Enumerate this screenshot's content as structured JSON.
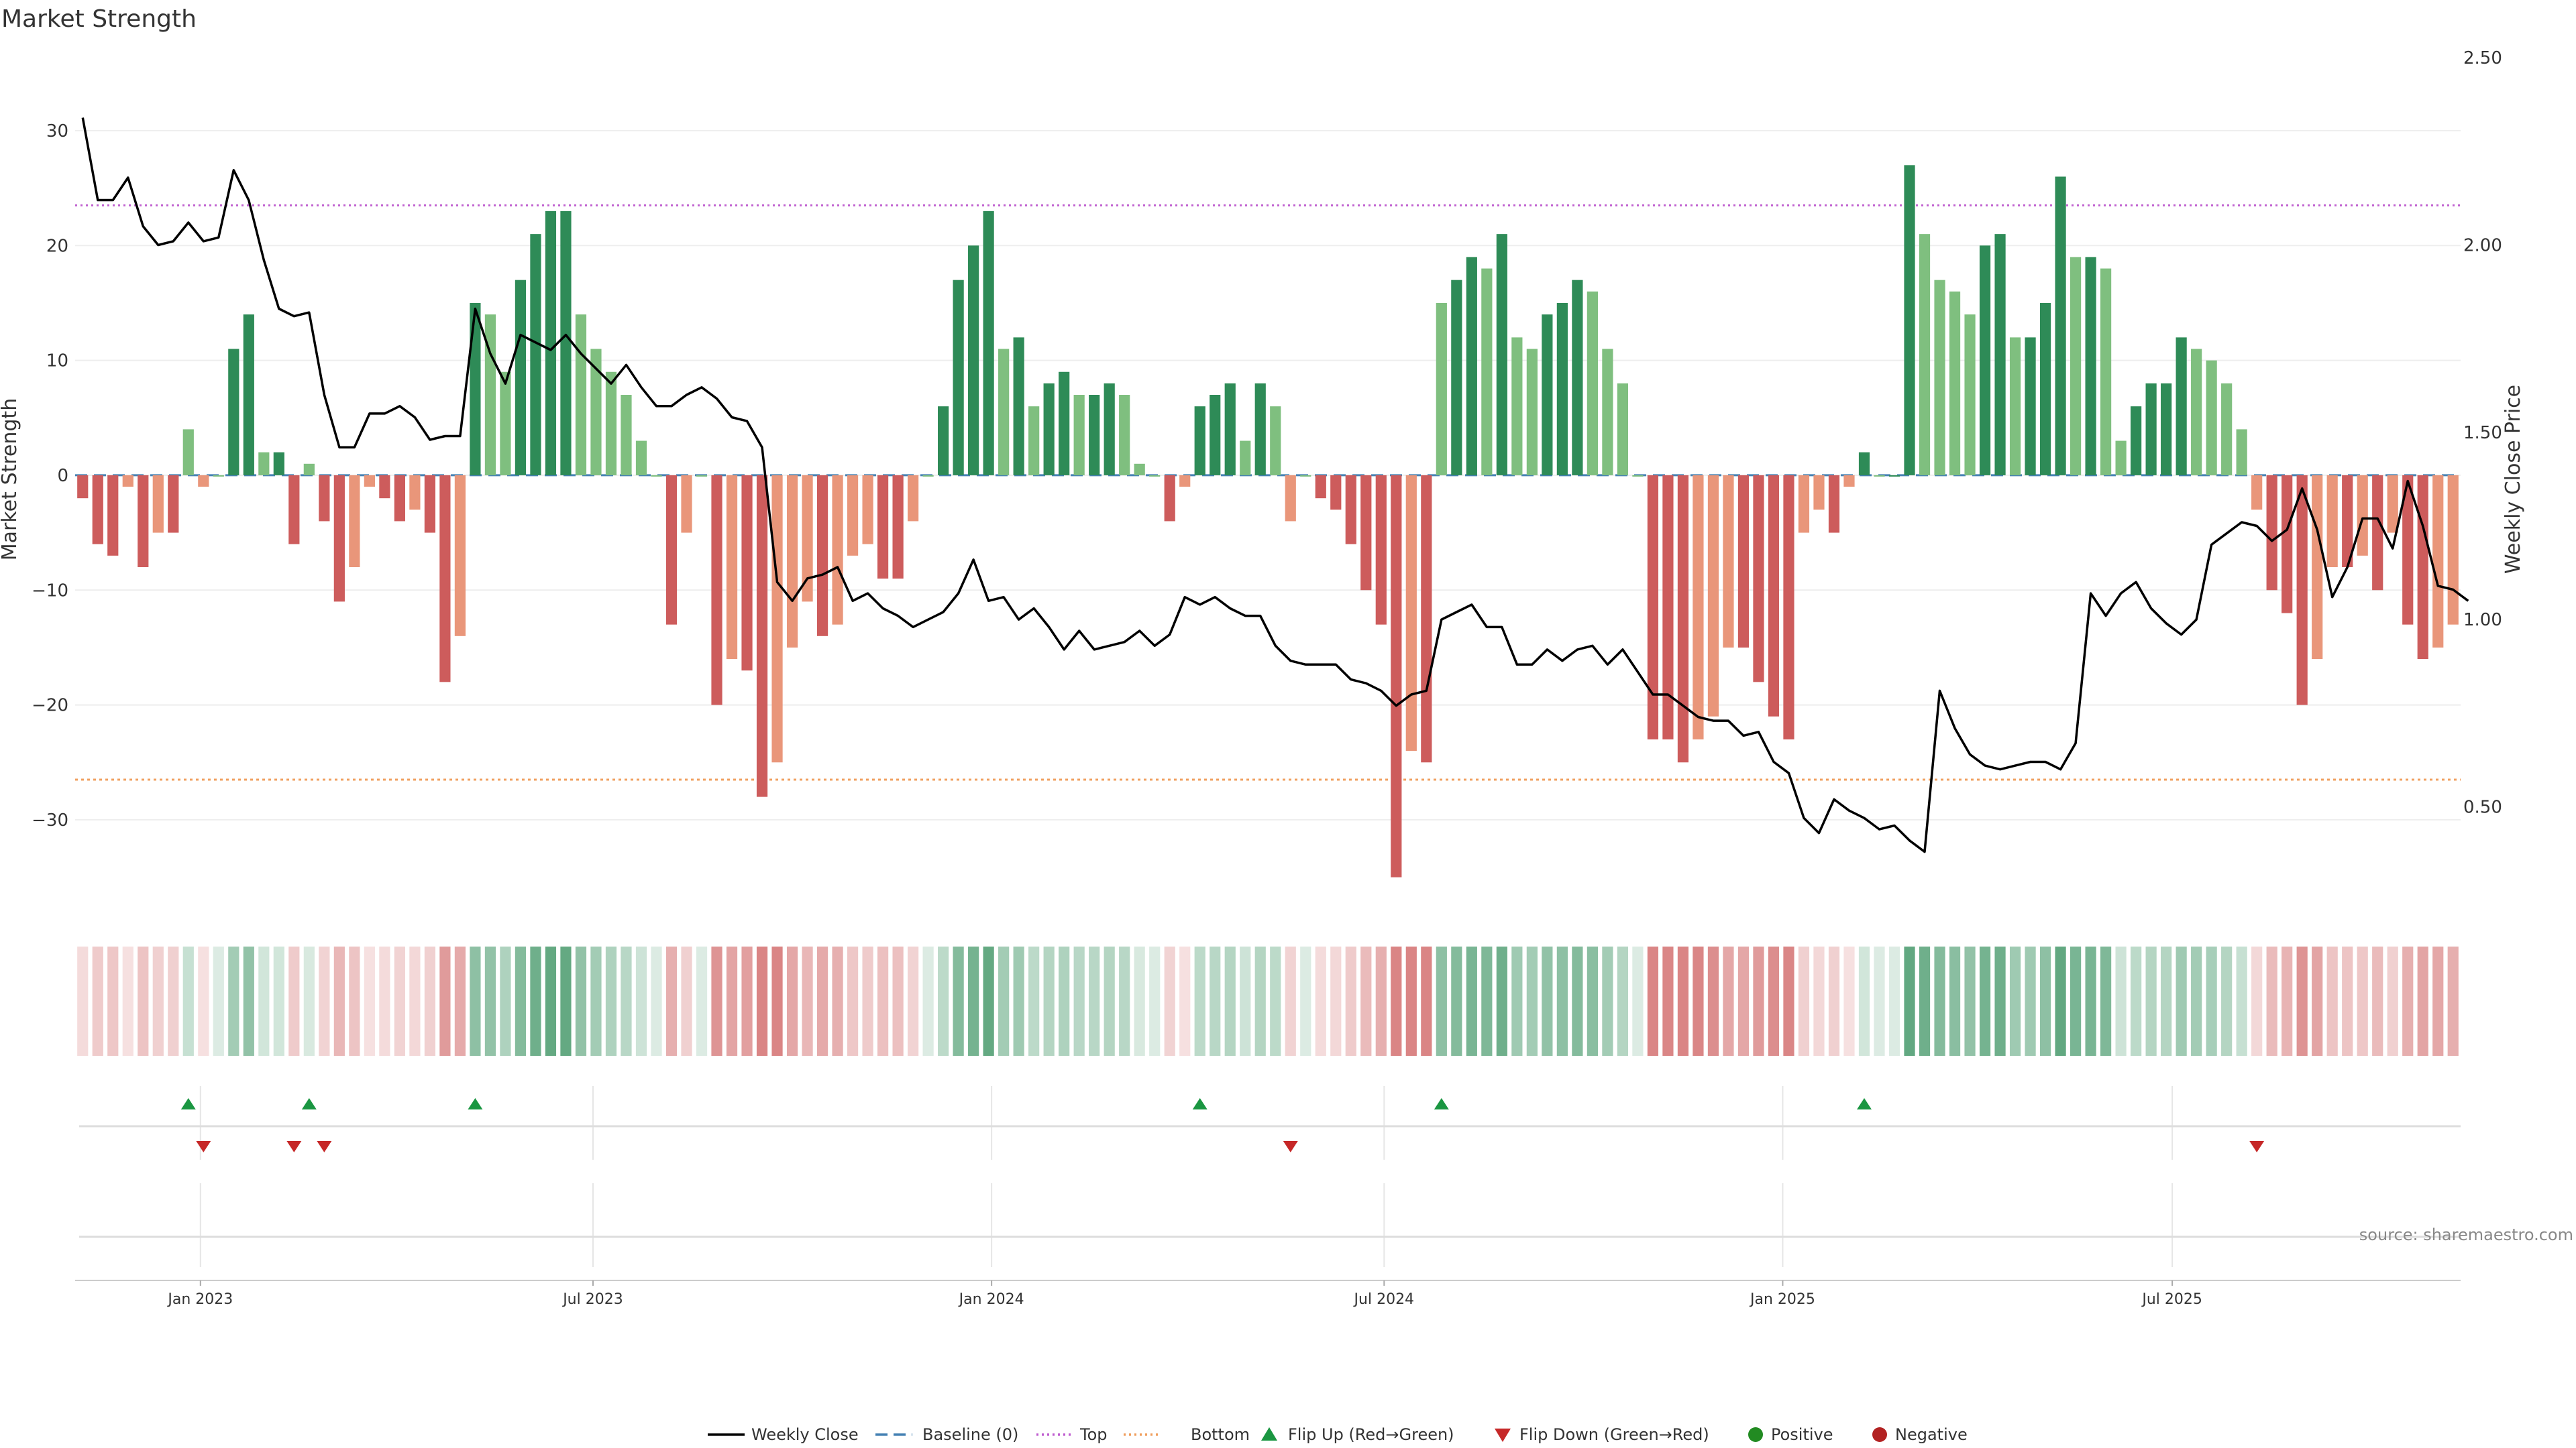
{
  "chart_data": {
    "type": "bar",
    "title": "Market Strength",
    "ylabel_left": "Market Strength",
    "ylabel_right": "Weekly Close Price",
    "ylim_left": [
      -38,
      37
    ],
    "ylim_right": [
      0.22,
      2.52
    ],
    "yticks_left": [
      30,
      20,
      10,
      0,
      -10,
      -20,
      -30
    ],
    "yticks_left_labels": [
      "30",
      "20",
      "10",
      "0",
      "−10",
      "−20",
      "−30"
    ],
    "yticks_right": [
      2.5,
      2.0,
      1.5,
      1.0,
      0.5
    ],
    "yticks_right_labels": [
      "2.50",
      "2.00",
      "1.50",
      "1.00",
      "0.50"
    ],
    "top_line": 23.5,
    "bottom_line": -26.5,
    "xticks": [
      {
        "label": "Jan 2023",
        "index": 8.3
      },
      {
        "label": "Jul 2023",
        "index": 34.3
      },
      {
        "label": "Jan 2024",
        "index": 60.7
      },
      {
        "label": "Jul 2024",
        "index": 86.7
      },
      {
        "label": "Jan 2025",
        "index": 113.1
      },
      {
        "label": "Jul 2025",
        "index": 138.9
      }
    ],
    "strength": [
      -2,
      -6,
      -7,
      -1,
      -8,
      -5,
      -5,
      4,
      -1,
      0,
      11,
      14,
      2,
      2,
      -6,
      1,
      -4,
      -11,
      -8,
      -1,
      -2,
      -4,
      -3,
      -5,
      -18,
      -14,
      15,
      14,
      9,
      17,
      21,
      23,
      23,
      14,
      11,
      9,
      7,
      3,
      0,
      -13,
      -5,
      0,
      -20,
      -16,
      -17,
      -28,
      -25,
      -15,
      -11,
      -14,
      -13,
      -7,
      -6,
      -9,
      -9,
      -4,
      0,
      6,
      17,
      20,
      23,
      11,
      12,
      6,
      8,
      9,
      7,
      7,
      8,
      7,
      1,
      0,
      -4,
      -1,
      6,
      7,
      8,
      3,
      8,
      6,
      -4,
      0,
      -2,
      -3,
      -6,
      -10,
      -13,
      -35,
      -24,
      -25,
      15,
      17,
      19,
      18,
      21,
      12,
      11,
      14,
      15,
      17,
      16,
      11,
      8,
      0,
      -23,
      -23,
      -25,
      -23,
      -21,
      -15,
      -15,
      -18,
      -21,
      -23,
      -5,
      -3,
      -5,
      -1,
      2,
      0,
      0,
      27,
      21,
      17,
      16,
      14,
      20,
      21,
      12,
      12,
      15,
      26,
      19,
      19,
      18,
      3,
      6,
      8,
      8,
      12,
      11,
      10,
      8,
      4,
      -3,
      -10,
      -12,
      -20,
      -16,
      -8,
      -8,
      -7,
      -10,
      -5,
      -13,
      -16,
      -15,
      -13
    ],
    "weekly_close": [
      2.34,
      2.12,
      2.12,
      2.18,
      2.05,
      2.0,
      2.01,
      2.06,
      2.01,
      2.02,
      2.2,
      2.12,
      1.96,
      1.83,
      1.81,
      1.82,
      1.6,
      1.46,
      1.46,
      1.55,
      1.55,
      1.57,
      1.54,
      1.48,
      1.49,
      1.49,
      1.83,
      1.71,
      1.63,
      1.76,
      1.74,
      1.72,
      1.76,
      1.71,
      1.67,
      1.63,
      1.68,
      1.62,
      1.57,
      1.57,
      1.6,
      1.62,
      1.59,
      1.54,
      1.53,
      1.46,
      1.1,
      1.05,
      1.11,
      1.12,
      1.14,
      1.05,
      1.07,
      1.03,
      1.01,
      0.98,
      1.0,
      1.02,
      1.07,
      1.16,
      1.05,
      1.06,
      1.0,
      1.03,
      0.98,
      0.92,
      0.97,
      0.92,
      0.93,
      0.94,
      0.97,
      0.93,
      0.96,
      1.06,
      1.04,
      1.06,
      1.03,
      1.01,
      1.01,
      0.93,
      0.89,
      0.88,
      0.88,
      0.88,
      0.84,
      0.83,
      0.81,
      0.77,
      0.8,
      0.81,
      1.0,
      1.02,
      1.04,
      0.98,
      0.98,
      0.88,
      0.88,
      0.92,
      0.89,
      0.92,
      0.93,
      0.88,
      0.92,
      0.86,
      0.8,
      0.8,
      0.77,
      0.74,
      0.73,
      0.73,
      0.69,
      0.7,
      0.62,
      0.59,
      0.47,
      0.43,
      0.52,
      0.49,
      0.47,
      0.44,
      0.45,
      0.41,
      0.38,
      0.81,
      0.71,
      0.64,
      0.61,
      0.6,
      0.61,
      0.62,
      0.62,
      0.6,
      0.67,
      1.07,
      1.01,
      1.07,
      1.1,
      1.03,
      0.99,
      0.96,
      1.0,
      1.2,
      1.23,
      1.26,
      1.25,
      1.21,
      1.24,
      1.35,
      1.24,
      1.06,
      1.14,
      1.27,
      1.27,
      1.19,
      1.37,
      1.25,
      1.09,
      1.08,
      1.05
    ],
    "legend": [
      {
        "label": "Weekly Close",
        "icon": "line-solid"
      },
      {
        "label": "Baseline (0)",
        "icon": "line-dashed"
      },
      {
        "label": "Top",
        "icon": "line-dotted"
      },
      {
        "label": "Bottom",
        "icon": "line-dotted"
      },
      {
        "label": "Flip Up (Red→Green)",
        "icon": "triangle-up"
      },
      {
        "label": "Flip Down (Green→Red)",
        "icon": "triangle-down"
      },
      {
        "label": "Positive",
        "icon": "dot"
      },
      {
        "label": "Negative",
        "icon": "dot"
      }
    ],
    "source": "source: sharemaestro.com"
  },
  "colors": {
    "green_strong": "#2e8b57",
    "green_light": "#7fbf7f",
    "red_strong": "#cd5c5c",
    "red_light": "#e9967a",
    "top_line": "#c060d0",
    "bottom_line": "#f0a060",
    "baseline": "#4682b4",
    "flip_up": "#1a9641",
    "flip_down": "#c62828",
    "positive_dot": "#228b22",
    "negative_dot": "#b22222",
    "close_line": "#000000"
  }
}
